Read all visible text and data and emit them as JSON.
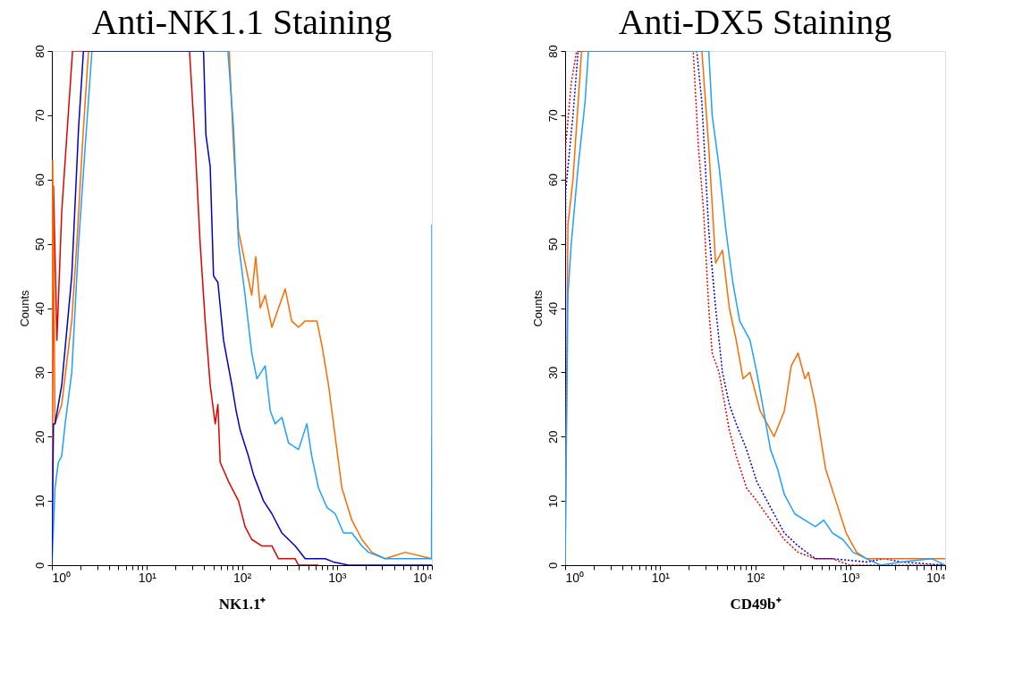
{
  "chart_data": [
    {
      "type": "line",
      "title": "Anti-NK1.1 Staining",
      "xlabel": "NK1.1⁺",
      "ylabel": "Counts",
      "log": "x",
      "grid": false,
      "legend": false,
      "marker": "none",
      "xlim": [
        1,
        10000
      ],
      "ylim": [
        0,
        80
      ],
      "xticks": [
        {
          "value": 1,
          "label": "10⁰"
        },
        {
          "value": 2,
          "label": null
        },
        {
          "value": 3,
          "label": null
        },
        {
          "value": 4,
          "label": null
        },
        {
          "value": 5,
          "label": null
        },
        {
          "value": 6,
          "label": null
        },
        {
          "value": 7,
          "label": null
        },
        {
          "value": 8,
          "label": null
        },
        {
          "value": 9,
          "label": null
        },
        {
          "value": 10,
          "label": "10¹"
        },
        {
          "value": 20,
          "label": null
        },
        {
          "value": 30,
          "label": null
        },
        {
          "value": 40,
          "label": null
        },
        {
          "value": 50,
          "label": null
        },
        {
          "value": 60,
          "label": null
        },
        {
          "value": 70,
          "label": null
        },
        {
          "value": 80,
          "label": null
        },
        {
          "value": 90,
          "label": null
        },
        {
          "value": 100,
          "label": "10²"
        },
        {
          "value": 200,
          "label": null
        },
        {
          "value": 300,
          "label": null
        },
        {
          "value": 400,
          "label": null
        },
        {
          "value": 500,
          "label": null
        },
        {
          "value": 600,
          "label": null
        },
        {
          "value": 700,
          "label": null
        },
        {
          "value": 800,
          "label": null
        },
        {
          "value": 900,
          "label": null
        },
        {
          "value": 1000,
          "label": "10³"
        },
        {
          "value": 2000,
          "label": null
        },
        {
          "value": 3000,
          "label": null
        },
        {
          "value": 4000,
          "label": null
        },
        {
          "value": 5000,
          "label": null
        },
        {
          "value": 6000,
          "label": null
        },
        {
          "value": 7000,
          "label": null
        },
        {
          "value": 8000,
          "label": null
        },
        {
          "value": 9000,
          "label": null
        },
        {
          "value": 10000,
          "label": "10⁴"
        }
      ],
      "yticks": [
        0,
        10,
        20,
        30,
        40,
        50,
        60,
        70,
        80
      ],
      "series": [
        {
          "color": "#e00000",
          "line_style": "solid",
          "x": [
            1,
            1.04,
            1.13,
            1.27,
            1.65,
            28.1,
            32.3,
            36.4,
            41.1,
            46.4,
            52.4,
            55.9,
            59.1,
            72.4,
            92.2,
            108,
            127,
            162,
            207,
            243,
            364,
            395,
            641
          ],
          "values": [
            0,
            59,
            35,
            55,
            80,
            80,
            65,
            50,
            38,
            28,
            22,
            25,
            16,
            13,
            10,
            6,
            4,
            3,
            3,
            1,
            1,
            0,
            0
          ]
        },
        {
          "color": "#ff6a00",
          "line_style": "solid",
          "x": [
            1,
            1.02,
            1.08,
            1.27,
            1.62,
            1.83,
            2.13,
            2.43,
            73.6,
            81.7,
            92.2,
            108,
            127,
            140,
            156,
            176,
            207,
            243,
            286,
            334,
            395,
            464,
            543,
            616,
            700,
            817,
            960,
            1129,
            1438,
            1832,
            2335,
            3228,
            5236,
            10000
          ],
          "values": [
            0,
            63,
            22,
            25,
            38,
            50,
            67,
            80,
            80,
            65,
            52,
            47,
            42,
            48,
            40,
            42,
            37,
            40,
            43,
            38,
            37,
            38,
            38,
            38,
            34,
            28,
            20,
            12,
            7,
            4,
            2,
            1,
            2,
            1
          ]
        },
        {
          "color": "#1ea0ff",
          "line_style": "solid",
          "x": [
            1,
            1.08,
            1.17,
            1.27,
            1.38,
            1.62,
            1.91,
            2.24,
            2.64,
            71.2,
            81.7,
            92.2,
            108,
            127,
            144,
            176,
            199,
            224,
            264,
            310,
            395,
            483,
            543,
            641,
            785,
            960,
            1175,
            1438,
            1832,
            2155,
            3228,
            9900,
            10000,
            10000
          ],
          "values": [
            0,
            12,
            16,
            17,
            22,
            30,
            50,
            65,
            80,
            80,
            68,
            50,
            42,
            33,
            29,
            31,
            24,
            22,
            23,
            19,
            18,
            22,
            17,
            12,
            9,
            8,
            5,
            5,
            3,
            2,
            1,
            1,
            27,
            53
          ]
        },
        {
          "color": "#0000cc",
          "line_style": "solid",
          "x": [
            1,
            1.04,
            1.08,
            1.27,
            1.62,
            1.91,
            2.15,
            39.5,
            41.8,
            46.4,
            50.3,
            55.9,
            64.1,
            78.5,
            87,
            96,
            117,
            133,
            169,
            207,
            264,
            364,
            464,
            753,
            920,
            1327,
            10000
          ],
          "values": [
            0,
            22,
            22,
            28,
            45,
            68,
            80,
            80,
            67,
            62,
            45,
            44,
            35,
            28,
            24,
            21,
            17,
            14,
            10,
            8,
            5,
            3,
            1,
            1,
            0.5,
            0,
            0
          ]
        }
      ]
    },
    {
      "type": "line",
      "title": "Anti-DX5 Staining",
      "xlabel": "CD49b⁺",
      "ylabel": "Counts",
      "log": "x",
      "grid": false,
      "legend": false,
      "marker": "none",
      "xlim": [
        1,
        10000
      ],
      "ylim": [
        0,
        80
      ],
      "xticks": [
        {
          "value": 1,
          "label": "10⁰"
        },
        {
          "value": 2,
          "label": null
        },
        {
          "value": 3,
          "label": null
        },
        {
          "value": 4,
          "label": null
        },
        {
          "value": 5,
          "label": null
        },
        {
          "value": 6,
          "label": null
        },
        {
          "value": 7,
          "label": null
        },
        {
          "value": 8,
          "label": null
        },
        {
          "value": 9,
          "label": null
        },
        {
          "value": 10,
          "label": "10¹"
        },
        {
          "value": 20,
          "label": null
        },
        {
          "value": 30,
          "label": null
        },
        {
          "value": 40,
          "label": null
        },
        {
          "value": 50,
          "label": null
        },
        {
          "value": 60,
          "label": null
        },
        {
          "value": 70,
          "label": null
        },
        {
          "value": 80,
          "label": null
        },
        {
          "value": 90,
          "label": null
        },
        {
          "value": 100,
          "label": "10²"
        },
        {
          "value": 200,
          "label": null
        },
        {
          "value": 300,
          "label": null
        },
        {
          "value": 400,
          "label": null
        },
        {
          "value": 500,
          "label": null
        },
        {
          "value": 600,
          "label": null
        },
        {
          "value": 700,
          "label": null
        },
        {
          "value": 800,
          "label": null
        },
        {
          "value": 900,
          "label": null
        },
        {
          "value": 1000,
          "label": "10³"
        },
        {
          "value": 2000,
          "label": null
        },
        {
          "value": 3000,
          "label": null
        },
        {
          "value": 4000,
          "label": null
        },
        {
          "value": 5000,
          "label": null
        },
        {
          "value": 6000,
          "label": null
        },
        {
          "value": 7000,
          "label": null
        },
        {
          "value": 8000,
          "label": null
        },
        {
          "value": 9000,
          "label": null
        },
        {
          "value": 10000,
          "label": "10⁴"
        }
      ],
      "yticks": [
        0,
        10,
        20,
        30,
        40,
        50,
        60,
        70,
        80
      ],
      "series": [
        {
          "color": "#e00000",
          "line_style": "dotted",
          "x": [
            1,
            1.01,
            1.16,
            1.32,
            22.3,
            25.3,
            28.7,
            32.5,
            35.3,
            41.7,
            45.3,
            53.5,
            63.2,
            81.2,
            104,
            145,
            203,
            283,
            430,
            652,
            988,
            10000
          ],
          "values": [
            0,
            65,
            75,
            80,
            80,
            65,
            55,
            40,
            33,
            30,
            27,
            21,
            17,
            12,
            10,
            7,
            4,
            2,
            1,
            1,
            0,
            0
          ]
        },
        {
          "color": "#0000cc",
          "line_style": "dotted",
          "x": [
            1,
            1.01,
            1.21,
            1.37,
            24.3,
            27.5,
            32.5,
            38.4,
            45.3,
            53.5,
            63.2,
            81.2,
            104,
            145,
            203,
            283,
            430,
            652,
            1497,
            2270,
            3443,
            10000
          ],
          "values": [
            0,
            58,
            70,
            80,
            80,
            72,
            52,
            40,
            30,
            25,
            22,
            18,
            13,
            9,
            5,
            3,
            1,
            1,
            0.5,
            1,
            0.5,
            0
          ]
        },
        {
          "color": "#ff6a00",
          "line_style": "solid",
          "x": [
            1,
            1.07,
            1.21,
            1.37,
            1.49,
            27.5,
            32.5,
            38.4,
            45.3,
            53.5,
            63.2,
            74.7,
            88.3,
            113,
            134,
            158,
            203,
            240,
            283,
            334,
            364,
            430,
            551,
            708,
            908,
            1167,
            1497,
            3443,
            10000
          ],
          "values": [
            0,
            53,
            60,
            72,
            80,
            80,
            65,
            47,
            49,
            40,
            35,
            29,
            30,
            24,
            22,
            20,
            24,
            31,
            33,
            29,
            30,
            25,
            15,
            10,
            5,
            2,
            1,
            1,
            1
          ]
        },
        {
          "color": "#1ea0ff",
          "line_style": "solid",
          "x": [
            1,
            1.07,
            1.16,
            1.37,
            1.62,
            1.76,
            32.5,
            35.3,
            41.7,
            49.3,
            58.2,
            68.7,
            88.3,
            104,
            123,
            145,
            172,
            203,
            261,
            334,
            430,
            528,
            652,
            836,
            1074,
            1497,
            2089,
            3443,
            7295,
            10000
          ],
          "values": [
            0,
            42,
            50,
            62,
            72,
            80,
            80,
            70,
            62,
            52,
            44,
            38,
            35,
            30,
            24,
            18,
            15,
            11,
            8,
            7,
            6,
            7,
            5,
            4,
            2,
            1,
            0,
            0.5,
            1,
            0
          ]
        }
      ]
    }
  ]
}
